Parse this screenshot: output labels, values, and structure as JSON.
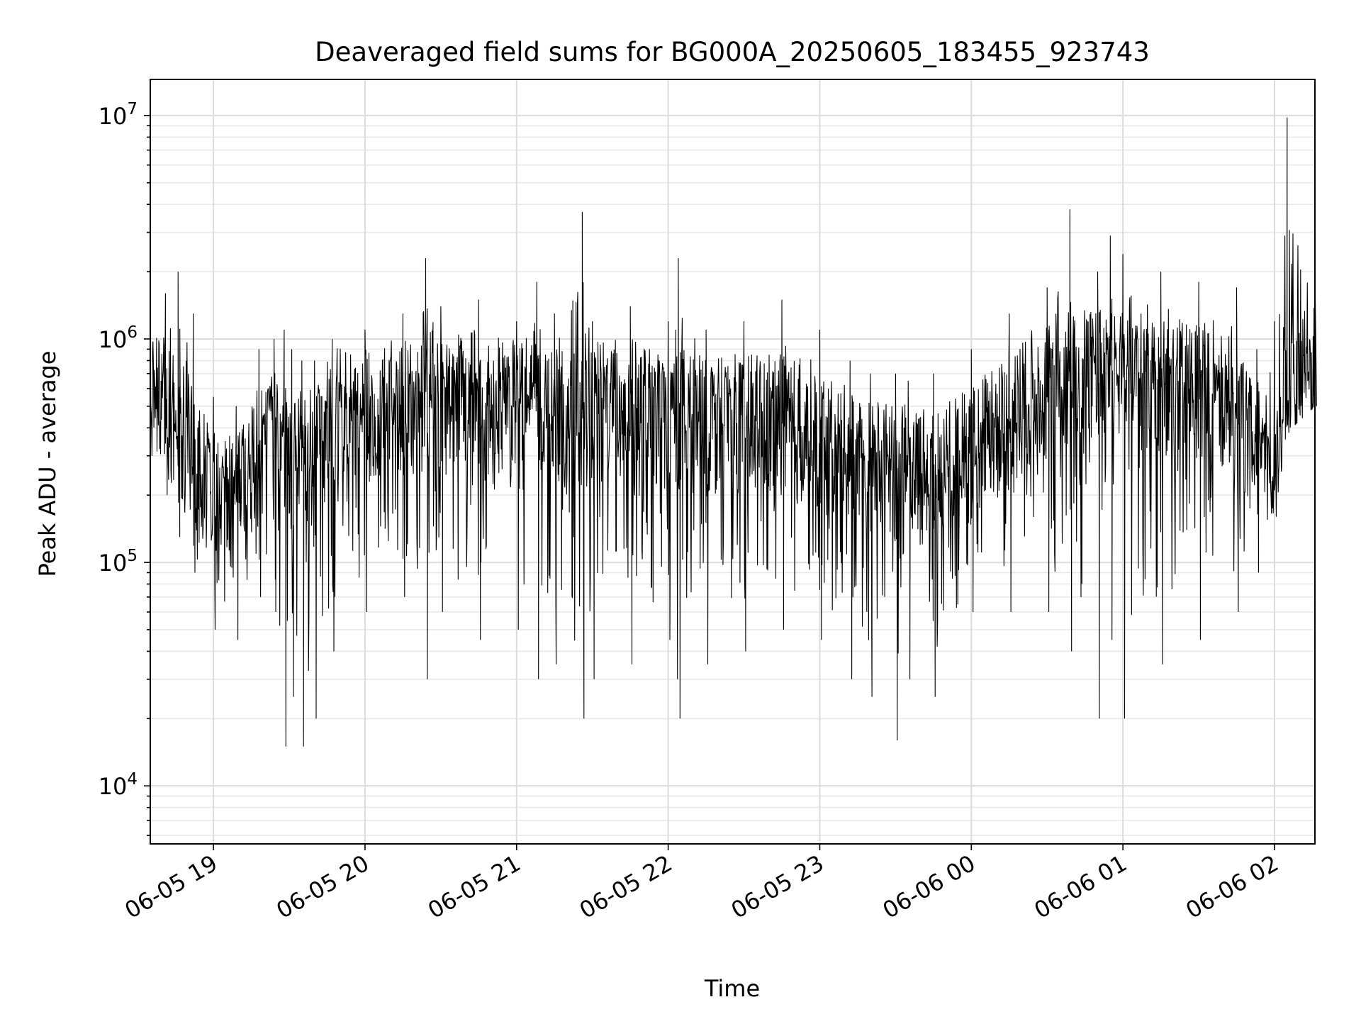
{
  "chart_data": {
    "type": "line",
    "title": "Deaveraged field sums for BG000A_20250605_183455_923743",
    "xlabel": "Time",
    "ylabel": "Peak ADU - average",
    "yscale": "log",
    "ylim": [
      5500,
      14500000
    ],
    "xlim": [
      "2025-06-05 18:35",
      "2025-06-06 02:16"
    ],
    "grid": true,
    "grid_minor": true,
    "line_color": "#000000",
    "x_ticks": [
      {
        "t": "2025-06-05 19:00",
        "label": "06-05 19"
      },
      {
        "t": "2025-06-05 20:00",
        "label": "06-05 20"
      },
      {
        "t": "2025-06-05 21:00",
        "label": "06-05 21"
      },
      {
        "t": "2025-06-05 22:00",
        "label": "06-05 22"
      },
      {
        "t": "2025-06-05 23:00",
        "label": "06-05 23"
      },
      {
        "t": "2025-06-06 00:00",
        "label": "06-06 00"
      },
      {
        "t": "2025-06-06 01:00",
        "label": "06-06 01"
      },
      {
        "t": "2025-06-06 02:00",
        "label": "06-06 02"
      }
    ],
    "y_ticks": [
      {
        "value": 10000,
        "base": "10",
        "exp": "4"
      },
      {
        "value": 100000,
        "base": "10",
        "exp": "5"
      },
      {
        "value": 1000000,
        "base": "10",
        "exp": "6"
      },
      {
        "value": 10000000,
        "base": "10",
        "exp": "7"
      }
    ],
    "series": [
      {
        "x": [
          "2025-06-05 18:35",
          "2025-06-05 18:41",
          "2025-06-05 18:46",
          "2025-06-05 18:52",
          "2025-06-05 19:00",
          "2025-06-05 19:09",
          "2025-06-05 19:18",
          "2025-06-05 19:24",
          "2025-06-05 19:28",
          "2025-06-05 19:31",
          "2025-06-05 19:35",
          "2025-06-05 19:40",
          "2025-06-05 19:47",
          "2025-06-05 20:00",
          "2025-06-05 20:15",
          "2025-06-05 20:24",
          "2025-06-05 20:30",
          "2025-06-05 20:45",
          "2025-06-05 21:00",
          "2025-06-05 21:08",
          "2025-06-05 21:15",
          "2025-06-05 21:26",
          "2025-06-05 21:30",
          "2025-06-05 21:45",
          "2025-06-05 22:00",
          "2025-06-05 22:03",
          "2025-06-05 22:04",
          "2025-06-05 22:15",
          "2025-06-05 22:30",
          "2025-06-05 22:45",
          "2025-06-05 23:00",
          "2025-06-05 23:12",
          "2025-06-05 23:20",
          "2025-06-05 23:30",
          "2025-06-05 23:35",
          "2025-06-05 23:45",
          "2025-06-06 00:00",
          "2025-06-06 00:15",
          "2025-06-06 00:30",
          "2025-06-06 00:39",
          "2025-06-06 00:50",
          "2025-06-06 00:55",
          "2025-06-06 01:00",
          "2025-06-06 01:15",
          "2025-06-06 01:30",
          "2025-06-06 01:45",
          "2025-06-06 01:53",
          "2025-06-06 02:00",
          "2025-06-06 02:05",
          "2025-06-06 02:16"
        ],
        "y": [
          550000,
          480000,
          420000,
          300000,
          200000,
          180000,
          300000,
          350000,
          320000,
          300000,
          280000,
          300000,
          450000,
          450000,
          500000,
          500000,
          520000,
          550000,
          480000,
          500000,
          450000,
          420000,
          480000,
          500000,
          420000,
          450000,
          450000,
          400000,
          420000,
          380000,
          330000,
          300000,
          280000,
          250000,
          250000,
          230000,
          300000,
          420000,
          600000,
          650000,
          700000,
          650000,
          650000,
          600000,
          600000,
          500000,
          300000,
          280000,
          550000,
          600000
        ],
        "upper": [
          1200000,
          1600000,
          2000000,
          1300000,
          550000,
          500000,
          900000,
          1000000,
          1100000,
          900000,
          800000,
          800000,
          1000000,
          1100000,
          1300000,
          2300000,
          1400000,
          1500000,
          1200000,
          1800000,
          1300000,
          3700000,
          1200000,
          1400000,
          1200000,
          1100000,
          2300000,
          1100000,
          1200000,
          1500000,
          1100000,
          800000,
          700000,
          700000,
          650000,
          700000,
          900000,
          1300000,
          1700000,
          3800000,
          2000000,
          2900000,
          2400000,
          2000000,
          1800000,
          1700000,
          900000,
          1200000,
          9800000,
          2000000
        ],
        "lower": [
          300000,
          200000,
          130000,
          90000,
          50000,
          45000,
          70000,
          60000,
          15000,
          25000,
          15000,
          20000,
          40000,
          60000,
          70000,
          30000,
          60000,
          45000,
          50000,
          30000,
          35000,
          20000,
          30000,
          35000,
          45000,
          30000,
          20000,
          35000,
          40000,
          50000,
          45000,
          30000,
          25000,
          16000,
          30000,
          25000,
          60000,
          60000,
          60000,
          40000,
          20000,
          45000,
          20000,
          35000,
          45000,
          60000,
          90000,
          160000,
          380000,
          500000
        ]
      }
    ]
  }
}
